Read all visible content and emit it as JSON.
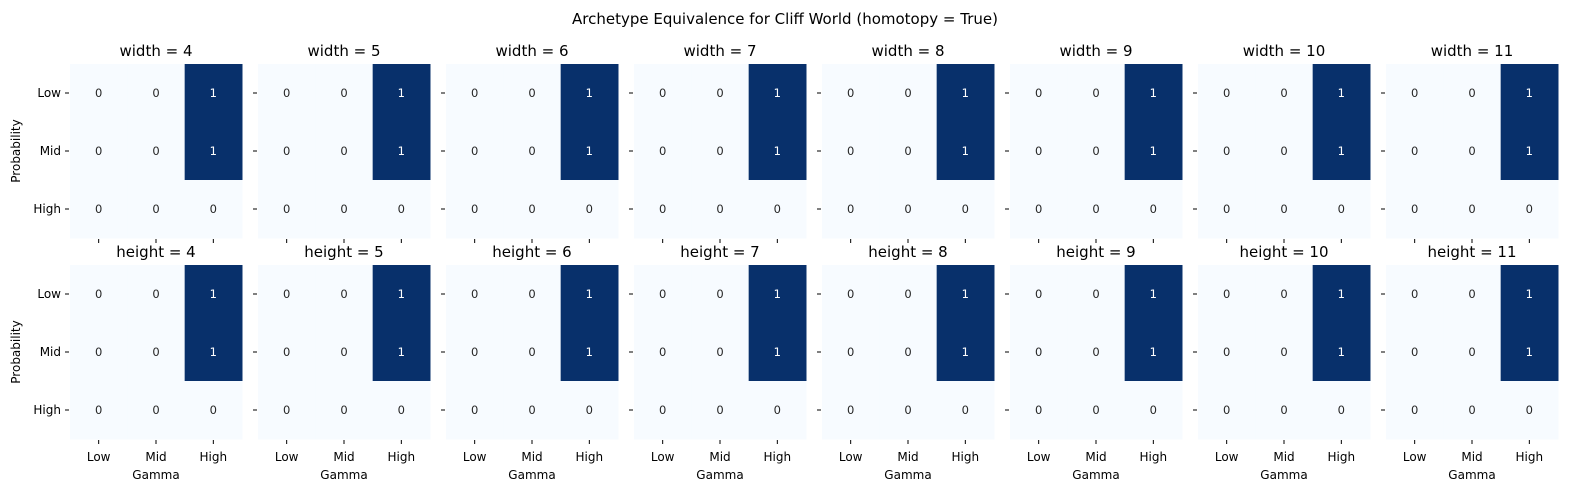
{
  "figure": {
    "suptitle": "Archetype Equivalence for Cliff World (homotopy = True)"
  },
  "chart_data": {
    "type": "heatmap",
    "colormap": "Blues",
    "colors": {
      "low": "#f7fbff",
      "high": "#08306b",
      "text_on_low": "#262626",
      "text_on_high": "#ffffff"
    },
    "xlabel": "Gamma",
    "ylabel": "Probability",
    "x_categories": [
      "Low",
      "Mid",
      "High"
    ],
    "y_categories": [
      "Low",
      "Mid",
      "High"
    ],
    "rows": [
      {
        "panels": [
          {
            "title": "width = 4",
            "values": [
              [
                0,
                0,
                1
              ],
              [
                0,
                0,
                1
              ],
              [
                0,
                0,
                0
              ]
            ]
          },
          {
            "title": "width = 5",
            "values": [
              [
                0,
                0,
                1
              ],
              [
                0,
                0,
                1
              ],
              [
                0,
                0,
                0
              ]
            ]
          },
          {
            "title": "width = 6",
            "values": [
              [
                0,
                0,
                1
              ],
              [
                0,
                0,
                1
              ],
              [
                0,
                0,
                0
              ]
            ]
          },
          {
            "title": "width = 7",
            "values": [
              [
                0,
                0,
                1
              ],
              [
                0,
                0,
                1
              ],
              [
                0,
                0,
                0
              ]
            ]
          },
          {
            "title": "width = 8",
            "values": [
              [
                0,
                0,
                1
              ],
              [
                0,
                0,
                1
              ],
              [
                0,
                0,
                0
              ]
            ]
          },
          {
            "title": "width = 9",
            "values": [
              [
                0,
                0,
                1
              ],
              [
                0,
                0,
                1
              ],
              [
                0,
                0,
                0
              ]
            ]
          },
          {
            "title": "width = 10",
            "values": [
              [
                0,
                0,
                1
              ],
              [
                0,
                0,
                1
              ],
              [
                0,
                0,
                0
              ]
            ]
          },
          {
            "title": "width = 11",
            "values": [
              [
                0,
                0,
                1
              ],
              [
                0,
                0,
                1
              ],
              [
                0,
                0,
                0
              ]
            ]
          }
        ]
      },
      {
        "panels": [
          {
            "title": "height = 4",
            "values": [
              [
                0,
                0,
                1
              ],
              [
                0,
                0,
                1
              ],
              [
                0,
                0,
                0
              ]
            ]
          },
          {
            "title": "height = 5",
            "values": [
              [
                0,
                0,
                1
              ],
              [
                0,
                0,
                1
              ],
              [
                0,
                0,
                0
              ]
            ]
          },
          {
            "title": "height = 6",
            "values": [
              [
                0,
                0,
                1
              ],
              [
                0,
                0,
                1
              ],
              [
                0,
                0,
                0
              ]
            ]
          },
          {
            "title": "height = 7",
            "values": [
              [
                0,
                0,
                1
              ],
              [
                0,
                0,
                1
              ],
              [
                0,
                0,
                0
              ]
            ]
          },
          {
            "title": "height = 8",
            "values": [
              [
                0,
                0,
                1
              ],
              [
                0,
                0,
                1
              ],
              [
                0,
                0,
                0
              ]
            ]
          },
          {
            "title": "height = 9",
            "values": [
              [
                0,
                0,
                1
              ],
              [
                0,
                0,
                1
              ],
              [
                0,
                0,
                0
              ]
            ]
          },
          {
            "title": "height = 10",
            "values": [
              [
                0,
                0,
                1
              ],
              [
                0,
                0,
                1
              ],
              [
                0,
                0,
                0
              ]
            ]
          },
          {
            "title": "height = 11",
            "values": [
              [
                0,
                0,
                1
              ],
              [
                0,
                0,
                1
              ],
              [
                0,
                0,
                0
              ]
            ]
          }
        ]
      }
    ]
  }
}
